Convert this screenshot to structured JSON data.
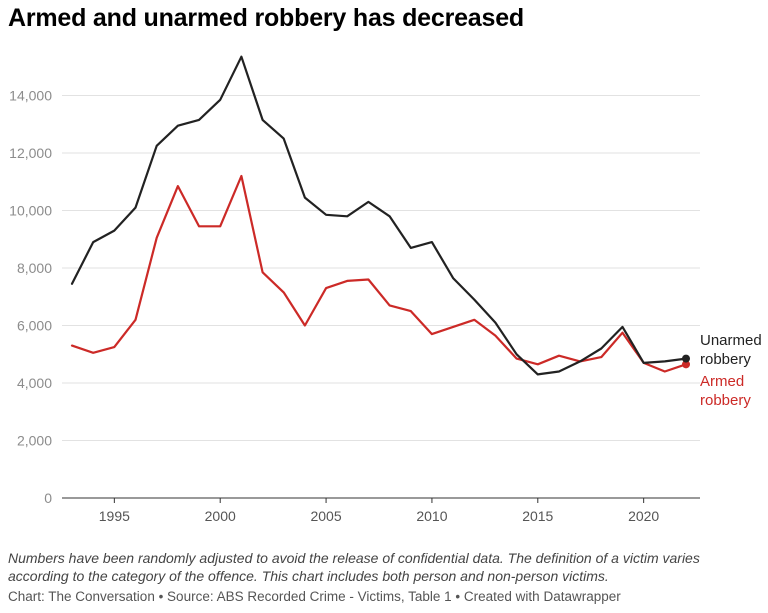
{
  "title": "Armed and unarmed robbery has decreased",
  "notes": "Numbers have been randomly adjusted to avoid the release of confidential data. The definition of a victim varies according to the category of the offence. This chart includes both person and non-person victims.",
  "footer": "Chart: The Conversation • Source: ABS Recorded Crime - Victims, Table 1 • Created with Datawrapper",
  "chart_data": {
    "type": "line",
    "title": "Armed and unarmed robbery has decreased",
    "xlabel": "",
    "ylabel": "",
    "x": [
      1993,
      1994,
      1995,
      1996,
      1997,
      1998,
      1999,
      2000,
      2001,
      2002,
      2003,
      2004,
      2005,
      2006,
      2007,
      2008,
      2009,
      2010,
      2011,
      2012,
      2013,
      2014,
      2015,
      2016,
      2017,
      2018,
      2019,
      2020,
      2021,
      2022
    ],
    "xlim": [
      1993,
      2022
    ],
    "ylim": [
      0,
      14000
    ],
    "x_ticks": [
      1995,
      2000,
      2005,
      2010,
      2015,
      2020
    ],
    "x_tick_labels": [
      "1995",
      "2000",
      "2005",
      "2010",
      "2015",
      "2020"
    ],
    "y_ticks": [
      0,
      2000,
      4000,
      6000,
      8000,
      10000,
      12000,
      14000
    ],
    "y_tick_labels": [
      "0",
      "2,000",
      "4,000",
      "6,000",
      "8,000",
      "10,000",
      "12,000",
      "14,000"
    ],
    "grid": true,
    "series": [
      {
        "name": "Unarmed robbery",
        "label_lines": [
          "Unarmed",
          "robbery"
        ],
        "color": "#222222",
        "values": [
          7450,
          8900,
          9300,
          10100,
          12250,
          12950,
          13150,
          13850,
          15350,
          13150,
          12500,
          10450,
          9850,
          9800,
          10300,
          9800,
          8700,
          8900,
          7650,
          6900,
          6100,
          5000,
          4300,
          4400,
          4750,
          5200,
          5950,
          4700,
          4750,
          4850
        ]
      },
      {
        "name": "Armed robbery",
        "label_lines": [
          "Armed",
          "robbery"
        ],
        "color": "#cc2a27",
        "values": [
          5300,
          5050,
          5250,
          6200,
          9050,
          10850,
          9450,
          9450,
          11200,
          7850,
          7150,
          6000,
          7300,
          7550,
          7600,
          6700,
          6500,
          5700,
          5950,
          6200,
          5650,
          4850,
          4650,
          4950,
          4750,
          4900,
          5750,
          4700,
          4400,
          4650
        ]
      }
    ]
  }
}
